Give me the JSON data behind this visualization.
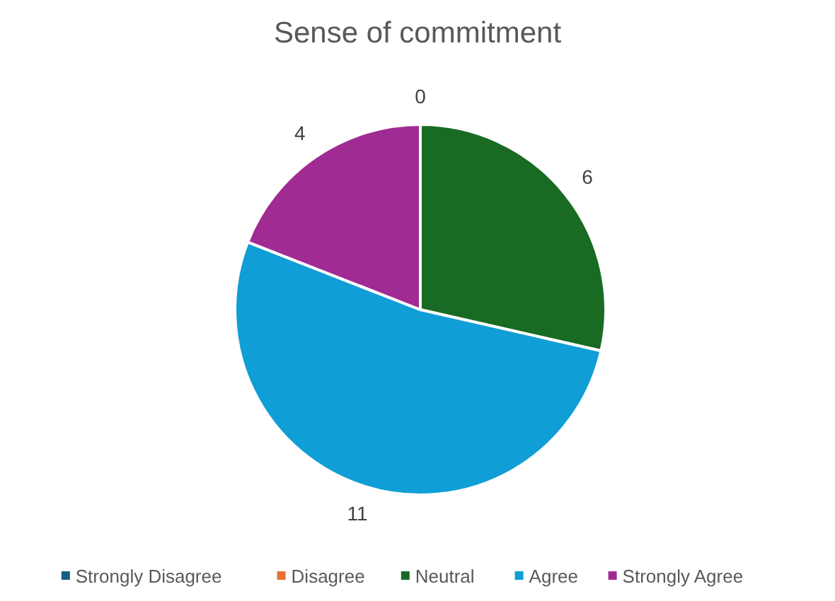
{
  "chart_data": {
    "type": "pie",
    "title": "Sense of commitment",
    "categories": [
      "Strongly Disagree",
      "Disagree",
      "Neutral",
      "Agree",
      "Strongly Agree"
    ],
    "values": [
      0,
      0,
      6,
      11,
      4
    ],
    "colors": [
      "#156082",
      "#e97132",
      "#196b24",
      "#0f9ed5",
      "#a02b93"
    ],
    "value_labels": [
      "0",
      null,
      "6",
      "11",
      "4"
    ],
    "legend": "bottom"
  }
}
